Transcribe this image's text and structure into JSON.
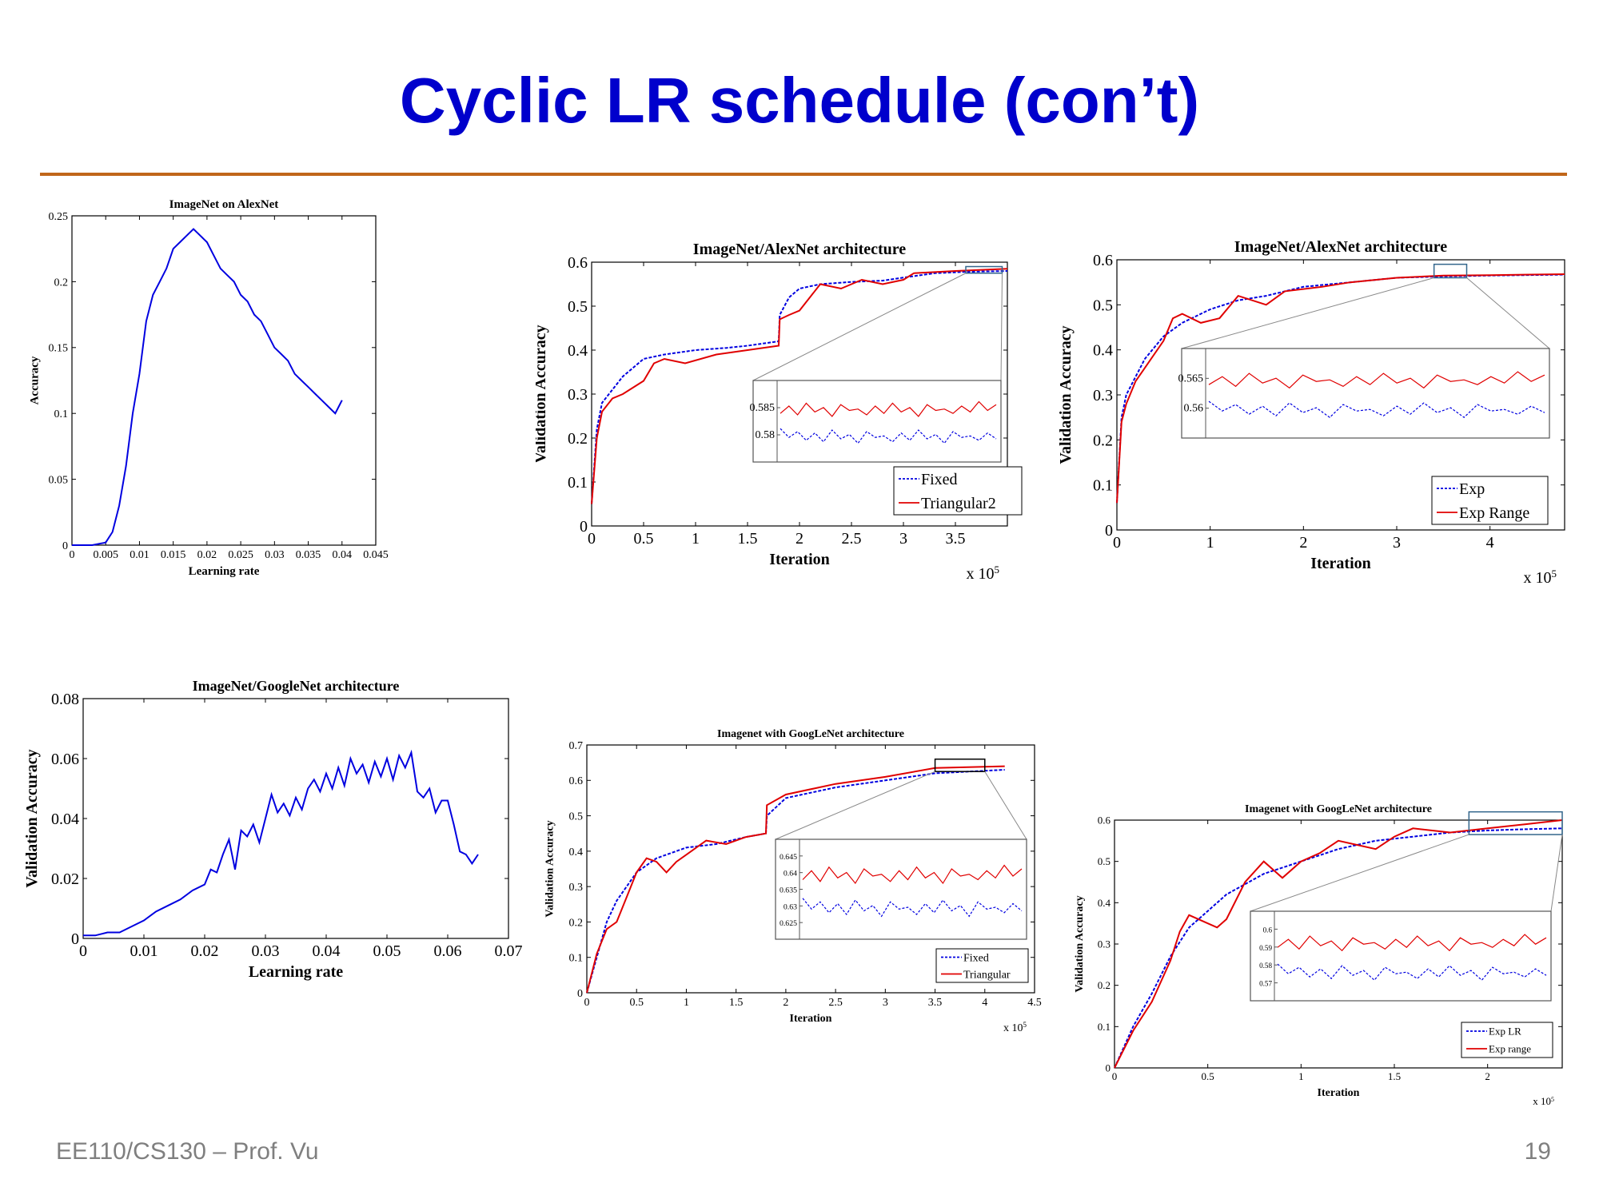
{
  "slide": {
    "title": "Cyclic LR schedule (con’t)",
    "footer_left": "EE110/CS130 – Prof. Vu",
    "page_number": "19"
  },
  "colors": {
    "title": "#0000cc",
    "rule": "#c0661a",
    "blue": "#0000e0",
    "red": "#e00000"
  },
  "chart_data": [
    {
      "id": "c1",
      "type": "line",
      "title": "ImageNet on AlexNet",
      "xlabel": "Learning rate",
      "ylabel": "Accuracy",
      "xlim": [
        0,
        0.045
      ],
      "ylim": [
        0,
        0.25
      ],
      "xticks": [
        0,
        0.005,
        0.01,
        0.015,
        0.02,
        0.025,
        0.03,
        0.035,
        0.04,
        0.045
      ],
      "xtick_labels": [
        "0",
        "0.005",
        "0.01",
        "0.015",
        "0.02",
        "0.025",
        "0.03",
        "0.035",
        "0.04",
        "0.045"
      ],
      "yticks": [
        0,
        0.05,
        0.1,
        0.15,
        0.2,
        0.25
      ],
      "ytick_labels": [
        "0",
        "0.05",
        "0.1",
        "0.15",
        "0.2",
        "0.25"
      ],
      "series": [
        {
          "name": "Accuracy",
          "color": "#0000e0",
          "style": "solid",
          "x": [
            0,
            0.003,
            0.005,
            0.006,
            0.007,
            0.008,
            0.009,
            0.01,
            0.011,
            0.012,
            0.013,
            0.014,
            0.015,
            0.016,
            0.017,
            0.018,
            0.019,
            0.02,
            0.021,
            0.022,
            0.023,
            0.024,
            0.025,
            0.026,
            0.027,
            0.028,
            0.029,
            0.03,
            0.031,
            0.032,
            0.033,
            0.034,
            0.035,
            0.036,
            0.037,
            0.038,
            0.039,
            0.04
          ],
          "y": [
            0,
            0,
            0.002,
            0.01,
            0.03,
            0.06,
            0.1,
            0.13,
            0.17,
            0.19,
            0.2,
            0.21,
            0.225,
            0.23,
            0.235,
            0.24,
            0.235,
            0.23,
            0.22,
            0.21,
            0.205,
            0.2,
            0.19,
            0.185,
            0.175,
            0.17,
            0.16,
            0.15,
            0.145,
            0.14,
            0.13,
            0.125,
            0.12,
            0.115,
            0.11,
            0.105,
            0.1,
            0.11
          ]
        }
      ]
    },
    {
      "id": "c2",
      "type": "line",
      "title": "ImageNet/AlexNet architecture",
      "xlabel": "Iteration",
      "ylabel": "Validation Accuracy",
      "xmult": "x 10",
      "xlim": [
        0,
        4
      ],
      "ylim": [
        0,
        0.6
      ],
      "xticks": [
        0,
        0.5,
        1,
        1.5,
        2,
        2.5,
        3,
        3.5
      ],
      "xtick_labels": [
        "0",
        "0.5",
        "1",
        "1.5",
        "2",
        "2.5",
        "3",
        "3.5"
      ],
      "yticks": [
        0,
        0.1,
        0.2,
        0.3,
        0.4,
        0.5,
        0.6
      ],
      "ytick_labels": [
        "0",
        "0.1",
        "0.2",
        "0.3",
        "0.4",
        "0.5",
        "0.6"
      ],
      "legend": [
        "Fixed",
        "Triangular2"
      ],
      "inset_ytick_labels": [
        "0.585",
        "0.58"
      ],
      "series": [
        {
          "name": "Fixed",
          "color": "#0000e0",
          "style": "dashed",
          "x": [
            0,
            0.05,
            0.1,
            0.2,
            0.3,
            0.5,
            0.7,
            1.0,
            1.3,
            1.5,
            1.8,
            1.81,
            1.9,
            2.0,
            2.2,
            2.5,
            2.8,
            3.0,
            3.3,
            3.6,
            4.0
          ],
          "y": [
            0.05,
            0.22,
            0.28,
            0.31,
            0.34,
            0.38,
            0.39,
            0.4,
            0.405,
            0.41,
            0.42,
            0.48,
            0.52,
            0.54,
            0.55,
            0.555,
            0.558,
            0.565,
            0.575,
            0.578,
            0.58
          ]
        },
        {
          "name": "Triangular2",
          "color": "#e00000",
          "style": "solid",
          "x": [
            0,
            0.05,
            0.1,
            0.2,
            0.3,
            0.5,
            0.6,
            0.7,
            0.9,
            1.2,
            1.5,
            1.8,
            1.81,
            1.9,
            2.0,
            2.1,
            2.2,
            2.4,
            2.6,
            2.8,
            3.0,
            3.1,
            3.5,
            4.0
          ],
          "y": [
            0.05,
            0.2,
            0.26,
            0.29,
            0.3,
            0.33,
            0.37,
            0.38,
            0.37,
            0.39,
            0.4,
            0.41,
            0.47,
            0.48,
            0.49,
            0.52,
            0.55,
            0.54,
            0.56,
            0.55,
            0.56,
            0.575,
            0.58,
            0.585
          ]
        }
      ]
    },
    {
      "id": "c3",
      "type": "line",
      "title": "ImageNet/AlexNet architecture",
      "xlabel": "Iteration",
      "ylabel": "Validation Accuracy",
      "xmult": "x 10",
      "xlim": [
        0,
        4.8
      ],
      "ylim": [
        0,
        0.6
      ],
      "xticks": [
        0,
        1,
        2,
        3,
        4
      ],
      "xtick_labels": [
        "0",
        "1",
        "2",
        "3",
        "4"
      ],
      "yticks": [
        0,
        0.1,
        0.2,
        0.3,
        0.4,
        0.5,
        0.6
      ],
      "ytick_labels": [
        "0",
        "0.1",
        "0.2",
        "0.3",
        "0.4",
        "0.5",
        "0.6"
      ],
      "legend": [
        "Exp",
        "Exp Range"
      ],
      "inset_ytick_labels": [
        "0.565",
        "0.56"
      ],
      "series": [
        {
          "name": "Exp",
          "color": "#0000e0",
          "style": "dashed",
          "x": [
            0,
            0.05,
            0.1,
            0.2,
            0.3,
            0.5,
            0.7,
            1.0,
            1.3,
            1.6,
            2.0,
            2.5,
            3.0,
            3.5,
            4.0,
            4.8
          ],
          "y": [
            0.06,
            0.25,
            0.3,
            0.34,
            0.38,
            0.43,
            0.46,
            0.49,
            0.51,
            0.52,
            0.54,
            0.55,
            0.56,
            0.563,
            0.565,
            0.567
          ]
        },
        {
          "name": "Exp Range",
          "color": "#e00000",
          "style": "solid",
          "x": [
            0,
            0.05,
            0.1,
            0.2,
            0.3,
            0.5,
            0.6,
            0.7,
            0.9,
            1.1,
            1.3,
            1.6,
            1.8,
            2.2,
            2.5,
            3.0,
            3.5,
            4.0,
            4.8
          ],
          "y": [
            0.06,
            0.24,
            0.28,
            0.33,
            0.36,
            0.42,
            0.47,
            0.48,
            0.46,
            0.47,
            0.52,
            0.5,
            0.53,
            0.54,
            0.55,
            0.56,
            0.565,
            0.566,
            0.568
          ]
        }
      ]
    },
    {
      "id": "c4",
      "type": "line",
      "title": "ImageNet/GoogleNet architecture",
      "xlabel": "Learning rate",
      "ylabel": "Validation Accuracy",
      "xlim": [
        0,
        0.07
      ],
      "ylim": [
        0,
        0.08
      ],
      "xticks": [
        0,
        0.01,
        0.02,
        0.03,
        0.04,
        0.05,
        0.06,
        0.07
      ],
      "xtick_labels": [
        "0",
        "0.01",
        "0.02",
        "0.03",
        "0.04",
        "0.05",
        "0.06",
        "0.07"
      ],
      "yticks": [
        0,
        0.02,
        0.04,
        0.06,
        0.08
      ],
      "ytick_labels": [
        "0",
        "0.02",
        "0.04",
        "0.06",
        "0.08"
      ],
      "series": [
        {
          "name": "Validation Accuracy",
          "color": "#0000e0",
          "style": "solid",
          "x": [
            0,
            0.002,
            0.004,
            0.006,
            0.008,
            0.01,
            0.012,
            0.014,
            0.016,
            0.018,
            0.02,
            0.021,
            0.022,
            0.023,
            0.024,
            0.025,
            0.026,
            0.027,
            0.028,
            0.029,
            0.03,
            0.031,
            0.032,
            0.033,
            0.034,
            0.035,
            0.036,
            0.037,
            0.038,
            0.039,
            0.04,
            0.041,
            0.042,
            0.043,
            0.044,
            0.045,
            0.046,
            0.047,
            0.048,
            0.049,
            0.05,
            0.051,
            0.052,
            0.053,
            0.054,
            0.055,
            0.056,
            0.057,
            0.058,
            0.059,
            0.06,
            0.061,
            0.062,
            0.063,
            0.064,
            0.065
          ],
          "y": [
            0.001,
            0.001,
            0.002,
            0.002,
            0.004,
            0.006,
            0.009,
            0.011,
            0.013,
            0.016,
            0.018,
            0.023,
            0.022,
            0.028,
            0.033,
            0.023,
            0.036,
            0.034,
            0.038,
            0.032,
            0.04,
            0.048,
            0.042,
            0.045,
            0.041,
            0.047,
            0.043,
            0.05,
            0.053,
            0.049,
            0.055,
            0.05,
            0.057,
            0.051,
            0.06,
            0.055,
            0.058,
            0.052,
            0.059,
            0.054,
            0.06,
            0.053,
            0.061,
            0.057,
            0.062,
            0.049,
            0.047,
            0.05,
            0.042,
            0.046,
            0.046,
            0.038,
            0.029,
            0.028,
            0.025,
            0.028
          ]
        }
      ]
    },
    {
      "id": "c5",
      "type": "line",
      "title": "Imagenet with GoogLeNet architecture",
      "xlabel": "Iteration",
      "ylabel": "Validation Accuracy",
      "xmult": "x 10",
      "xlim": [
        0,
        4.5
      ],
      "ylim": [
        0,
        0.7
      ],
      "xticks": [
        0,
        0.5,
        1,
        1.5,
        2,
        2.5,
        3,
        3.5,
        4,
        4.5
      ],
      "xtick_labels": [
        "0",
        "0.5",
        "1",
        "1.5",
        "2",
        "2.5",
        "3",
        "3.5",
        "4",
        "4.5"
      ],
      "yticks": [
        0,
        0.1,
        0.2,
        0.3,
        0.4,
        0.5,
        0.6,
        0.7
      ],
      "ytick_labels": [
        "0",
        "0.1",
        "0.2",
        "0.3",
        "0.4",
        "0.5",
        "0.6",
        "0.7"
      ],
      "legend": [
        "Fixed",
        "Triangular"
      ],
      "inset_ytick_labels": [
        "0.645",
        "0.64",
        "0.635",
        "0.63",
        "0.625"
      ],
      "series": [
        {
          "name": "Fixed",
          "color": "#0000e0",
          "style": "dashed",
          "x": [
            0,
            0.1,
            0.2,
            0.3,
            0.5,
            0.7,
            1.0,
            1.3,
            1.6,
            1.8,
            1.81,
            2.0,
            2.5,
            3.0,
            3.5,
            4.2
          ],
          "y": [
            0,
            0.1,
            0.2,
            0.26,
            0.34,
            0.38,
            0.41,
            0.42,
            0.44,
            0.45,
            0.5,
            0.55,
            0.58,
            0.6,
            0.62,
            0.63
          ]
        },
        {
          "name": "Triangular",
          "color": "#e00000",
          "style": "solid",
          "x": [
            0,
            0.1,
            0.2,
            0.3,
            0.4,
            0.5,
            0.6,
            0.7,
            0.8,
            0.9,
            1.0,
            1.2,
            1.4,
            1.6,
            1.8,
            1.81,
            2.0,
            2.5,
            3.0,
            3.5,
            4.2
          ],
          "y": [
            0,
            0.11,
            0.18,
            0.2,
            0.27,
            0.34,
            0.38,
            0.37,
            0.34,
            0.37,
            0.39,
            0.43,
            0.42,
            0.44,
            0.45,
            0.53,
            0.56,
            0.59,
            0.61,
            0.635,
            0.64
          ]
        }
      ]
    },
    {
      "id": "c6",
      "type": "line",
      "title": "Imagenet with GoogLeNet architecture",
      "xlabel": "Iteration",
      "ylabel": "Validation Accuracy",
      "xmult": "x 10",
      "xlim": [
        0,
        2.4
      ],
      "ylim": [
        0,
        0.6
      ],
      "xticks": [
        0,
        0.5,
        1,
        1.5,
        2
      ],
      "xtick_labels": [
        "0",
        "0.5",
        "1",
        "1.5",
        "2"
      ],
      "yticks": [
        0,
        0.1,
        0.2,
        0.3,
        0.4,
        0.5,
        0.6
      ],
      "ytick_labels": [
        "0",
        "0.1",
        "0.2",
        "0.3",
        "0.4",
        "0.5",
        "0.6"
      ],
      "legend": [
        "Exp LR",
        "Exp range"
      ],
      "inset_ytick_labels": [
        "0.6",
        "0.59",
        "0.58",
        "0.57"
      ],
      "series": [
        {
          "name": "Exp LR",
          "color": "#0000e0",
          "style": "dashed",
          "x": [
            0,
            0.1,
            0.2,
            0.3,
            0.4,
            0.5,
            0.6,
            0.8,
            1.0,
            1.2,
            1.4,
            1.6,
            1.8,
            2.0,
            2.2,
            2.4
          ],
          "y": [
            0,
            0.1,
            0.18,
            0.27,
            0.34,
            0.38,
            0.42,
            0.47,
            0.5,
            0.53,
            0.55,
            0.56,
            0.57,
            0.575,
            0.578,
            0.58
          ]
        },
        {
          "name": "Exp range",
          "color": "#e00000",
          "style": "solid",
          "x": [
            0,
            0.1,
            0.2,
            0.3,
            0.35,
            0.4,
            0.5,
            0.55,
            0.6,
            0.7,
            0.8,
            0.9,
            1.0,
            1.1,
            1.2,
            1.3,
            1.4,
            1.5,
            1.6,
            1.8,
            2.0,
            2.2,
            2.4
          ],
          "y": [
            0,
            0.09,
            0.16,
            0.26,
            0.33,
            0.37,
            0.35,
            0.34,
            0.36,
            0.45,
            0.5,
            0.46,
            0.5,
            0.52,
            0.55,
            0.54,
            0.53,
            0.56,
            0.58,
            0.57,
            0.58,
            0.59,
            0.6
          ]
        }
      ]
    }
  ]
}
